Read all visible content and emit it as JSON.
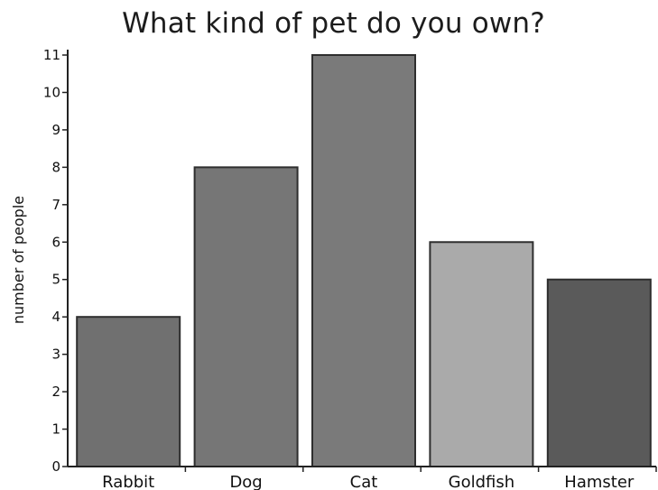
{
  "chart_data": {
    "type": "bar",
    "title": "What kind of pet do you own?",
    "xlabel": "",
    "ylabel": "number of people",
    "categories": [
      "Rabbit",
      "Dog",
      "Cat",
      "Goldfish",
      "Hamster"
    ],
    "values": [
      4,
      8,
      11,
      6,
      5
    ],
    "bar_colors": [
      "#707070",
      "#767676",
      "#7a7a7a",
      "#aaaaaa",
      "#5a5a5a"
    ],
    "ylim": [
      0,
      11
    ],
    "yticks": [
      "0",
      "1",
      "2",
      "3",
      "4",
      "5",
      "6",
      "7",
      "8",
      "9",
      "10",
      "11"
    ],
    "grid": false,
    "legend": "none"
  }
}
